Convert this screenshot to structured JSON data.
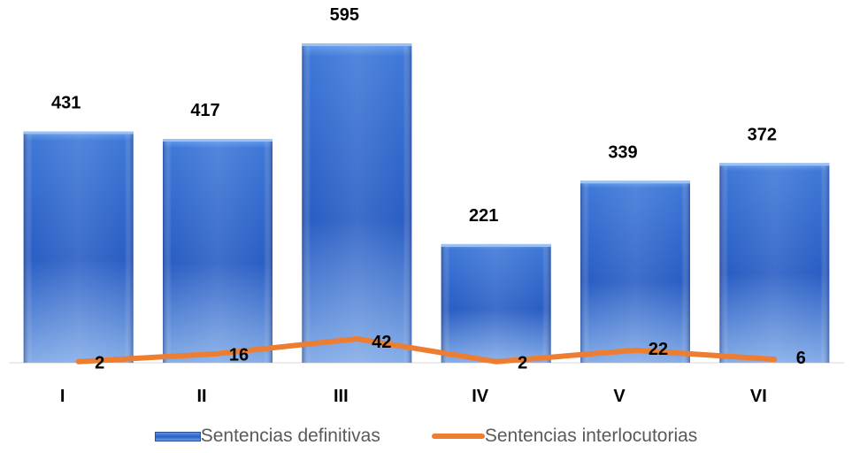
{
  "chart_data": {
    "type": "bar",
    "categories": [
      "I",
      "II",
      "III",
      "IV",
      "V",
      "VI"
    ],
    "series": [
      {
        "name": "Sentencias definitivas",
        "kind": "bar",
        "values": [
          431,
          417,
          595,
          221,
          339,
          372
        ]
      },
      {
        "name": "Sentencias interlocutorias",
        "kind": "line",
        "values": [
          2,
          16,
          42,
          2,
          22,
          6
        ]
      }
    ],
    "ylim": [
      0,
      650
    ],
    "grid": false,
    "legend_position": "bottom",
    "colors": {
      "bar_top": "#5b95e6",
      "bar_mid": "#2a5ec4",
      "bar_bottom": "#7fa6e4",
      "line": "#ed7d31"
    }
  }
}
